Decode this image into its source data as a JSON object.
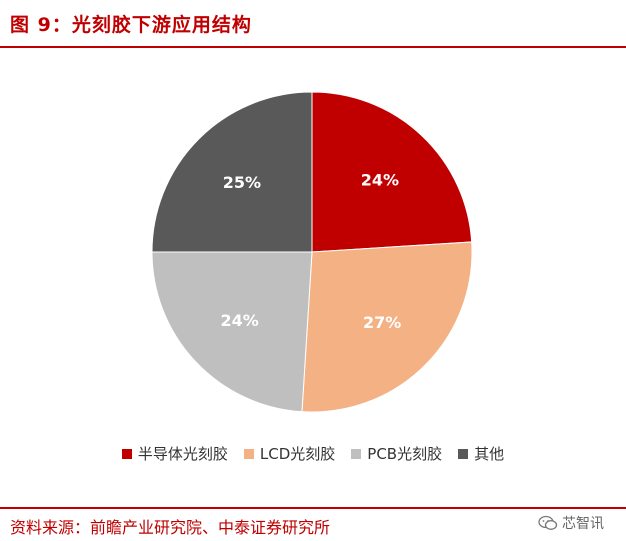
{
  "figure": {
    "title": "图 9：光刻胶下游应用结构",
    "source": "资料来源：前瞻产业研究院、中泰证券研究所",
    "watermark": "芯智讯",
    "watermark_icon": "wechat-icon"
  },
  "colors": {
    "accent": "#c00000"
  },
  "chart_data": {
    "type": "pie",
    "categories": [
      "半导体光刻胶",
      "LCD光刻胶",
      "PCB光刻胶",
      "其他"
    ],
    "values": [
      24,
      27,
      24,
      25
    ],
    "labels": [
      "24%",
      "27%",
      "24%",
      "25%"
    ],
    "colors": [
      "#c00000",
      "#f4b183",
      "#bfbfbf",
      "#595959"
    ],
    "start": "12 o'clock, clockwise",
    "legend": "bottom"
  }
}
